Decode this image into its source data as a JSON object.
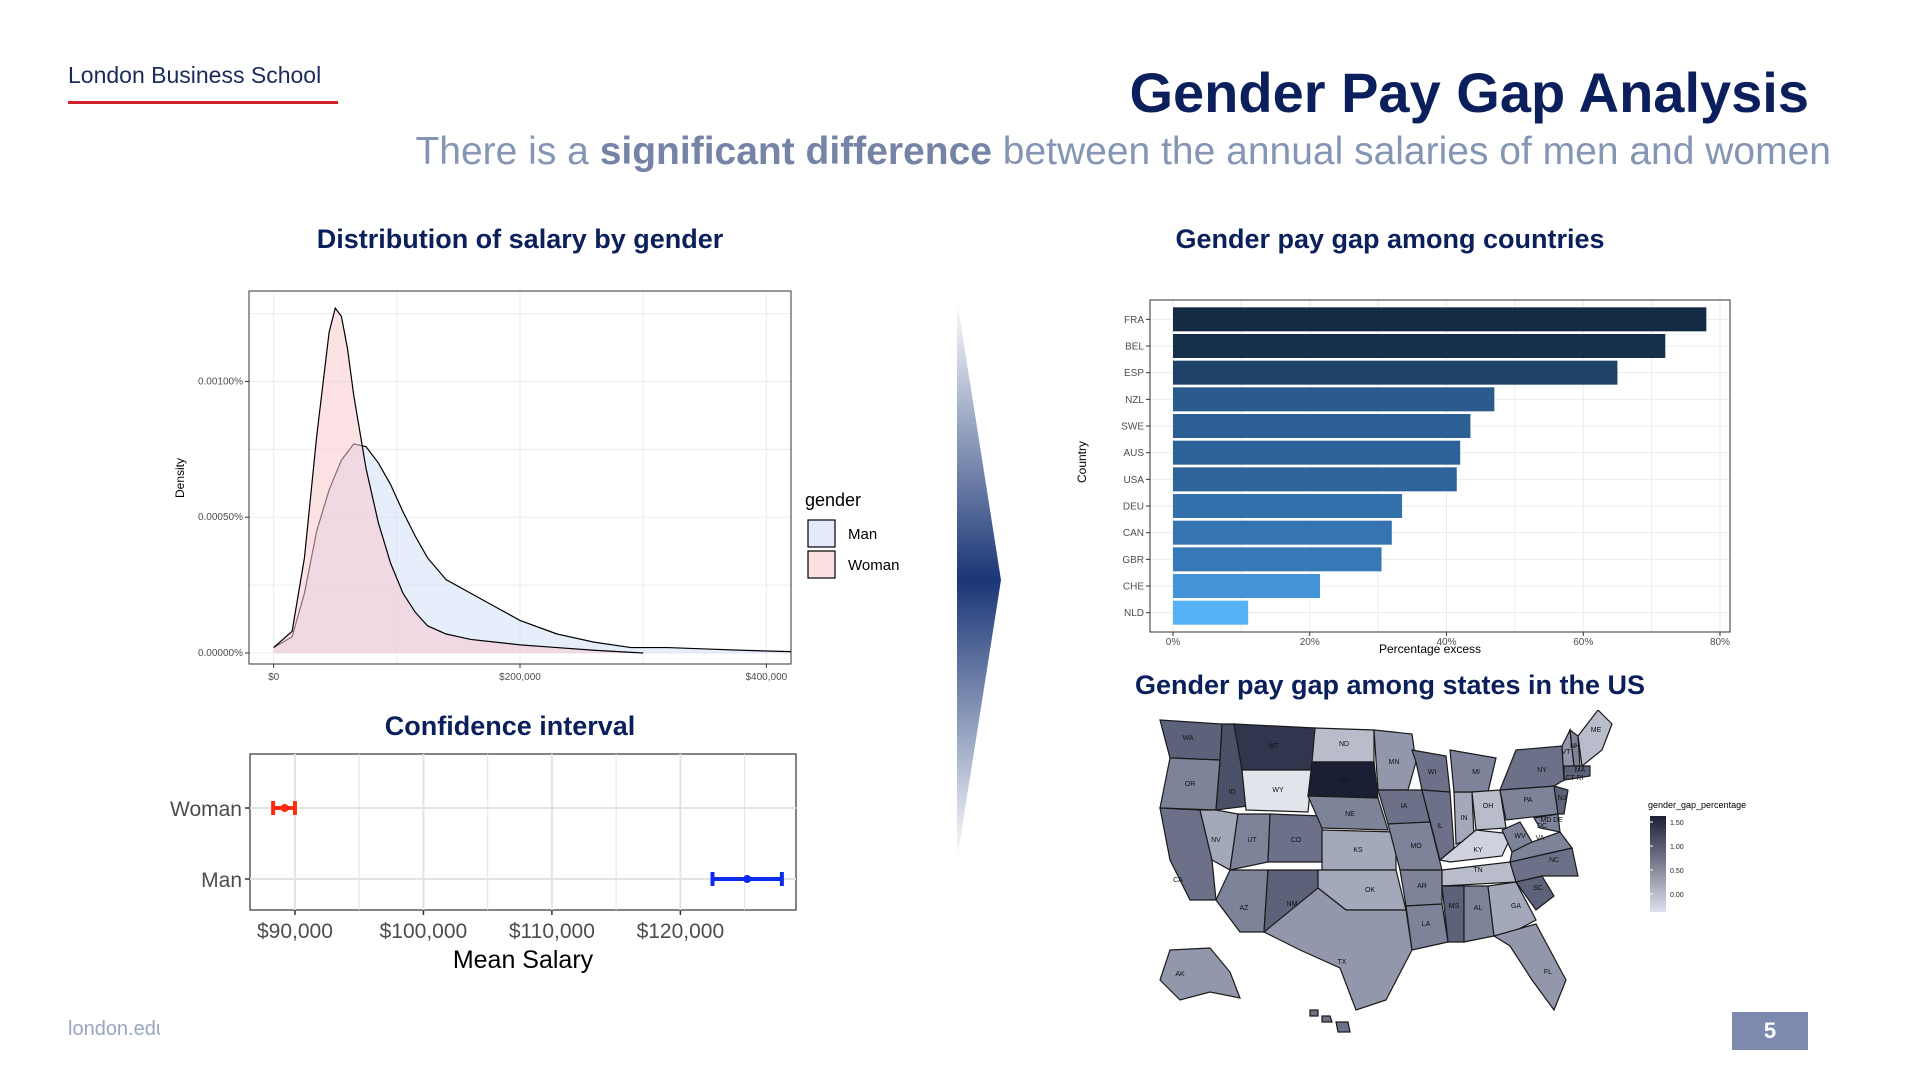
{
  "header": {
    "logo": "London Business School",
    "title": "Gender Pay Gap Analysis",
    "subtitle_pre": "There is a ",
    "subtitle_bold": "significant difference",
    "subtitle_post": " between the annual salaries of men and women"
  },
  "footer": {
    "url": "london.edu",
    "page": "5"
  },
  "colors": {
    "navy": "#0b1f5c",
    "accent_red": "#d2232a",
    "man_fill": "#e4eaf9",
    "woman_fill": "#fde0e2"
  },
  "panels": {
    "density_title": "Distribution of salary by gender",
    "ci_title": "Confidence interval",
    "countries_title": "Gender pay gap among countries",
    "states_title": "Gender pay gap among states in the US"
  },
  "chart_data": [
    {
      "type": "area",
      "title": "Distribution of salary by gender",
      "xlabel": "",
      "ylabel": "Density",
      "xlim": [
        -20000,
        420000
      ],
      "ylim": [
        0,
        0.0013
      ],
      "x_ticks": [
        "$0",
        "$200,000",
        "$400,000"
      ],
      "y_ticks": [
        "0.00000%",
        "0.00050%",
        "0.00100%"
      ],
      "legend_title": "gender",
      "grid": true,
      "series": [
        {
          "name": "Man",
          "x": [
            0,
            15000,
            25000,
            35000,
            45000,
            55000,
            65000,
            75000,
            85000,
            95000,
            105000,
            115000,
            125000,
            140000,
            160000,
            180000,
            200000,
            230000,
            260000,
            290000,
            320000,
            350000,
            380000,
            420000
          ],
          "y": [
            2e-05,
            6e-05,
            0.00022,
            0.00045,
            0.0006,
            0.00071,
            0.00077,
            0.00076,
            0.0007,
            0.00062,
            0.00052,
            0.00043,
            0.00035,
            0.00027,
            0.00022,
            0.00017,
            0.00012,
            7e-05,
            4e-05,
            2e-05,
            2e-05,
            1.5e-05,
            1e-05,
            5e-06
          ]
        },
        {
          "name": "Woman",
          "x": [
            0,
            15000,
            25000,
            35000,
            45000,
            50000,
            55000,
            60000,
            65000,
            75000,
            85000,
            95000,
            105000,
            115000,
            125000,
            140000,
            160000,
            180000,
            200000,
            230000,
            260000,
            300000
          ],
          "y": [
            2e-05,
            8e-05,
            0.00035,
            0.0008,
            0.00118,
            0.00127,
            0.00124,
            0.00112,
            0.00095,
            0.00068,
            0.00048,
            0.00033,
            0.00022,
            0.00015,
            0.0001,
            7e-05,
            5e-05,
            4e-05,
            3e-05,
            2e-05,
            1e-05,
            0.0
          ]
        }
      ]
    },
    {
      "type": "scatter",
      "title": "Confidence interval",
      "xlabel": "Mean Salary",
      "ylabel": "",
      "xlim": [
        86500,
        129000
      ],
      "x_ticks": [
        "$90,000",
        "$100,000",
        "$110,000",
        "$120,000"
      ],
      "categories": [
        "Woman",
        "Man"
      ],
      "series": [
        {
          "name": "Woman",
          "mean": 89200,
          "lower": 88300,
          "upper": 90000,
          "color": "#ff2a0f"
        },
        {
          "name": "Man",
          "mean": 125200,
          "lower": 122500,
          "upper": 127900,
          "color": "#0b2cf0"
        }
      ]
    },
    {
      "type": "bar",
      "title": "Gender pay gap among countries",
      "xlabel": "Percentage excess",
      "ylabel": "Country",
      "xlim": [
        0,
        80
      ],
      "x_ticks": [
        "0%",
        "20%",
        "40%",
        "60%",
        "80%"
      ],
      "categories": [
        "FRA",
        "BEL",
        "ESP",
        "NZL",
        "SWE",
        "AUS",
        "USA",
        "DEU",
        "CAN",
        "GBR",
        "CHE",
        "NLD"
      ],
      "values": [
        78,
        72,
        65,
        47,
        43.5,
        42,
        41.5,
        33.5,
        32,
        30.5,
        21.5,
        11
      ],
      "colors": [
        "#132b43",
        "#17304a",
        "#1f4269",
        "#2a5b8c",
        "#2c5f93",
        "#2d6298",
        "#2e649b",
        "#3371ad",
        "#3574b1",
        "#3778b6",
        "#4394d9",
        "#56b1f7"
      ]
    }
  ],
  "map": {
    "legend_title": "gender_gap_percentage",
    "legend_ticks": [
      "1.50",
      "1.00",
      "0.50",
      "0.00"
    ],
    "states": [
      "WA",
      "MT",
      "ND",
      "MN",
      "ME",
      "OR",
      "ID",
      "SD",
      "WI",
      "MI",
      "NY",
      "VT",
      "NH",
      "MA",
      "WY",
      "NV",
      "UT",
      "CO",
      "NE",
      "IA",
      "IL",
      "IN",
      "OH",
      "PA",
      "NJ",
      "CA",
      "KS",
      "MO",
      "KY",
      "WV",
      "VA",
      "MD",
      "DE",
      "AZ",
      "NM",
      "OK",
      "AR",
      "TN",
      "NC",
      "SC",
      "TX",
      "LA",
      "MS",
      "AL",
      "GA",
      "FL",
      "AK",
      "CT",
      "RI",
      "DC"
    ]
  }
}
